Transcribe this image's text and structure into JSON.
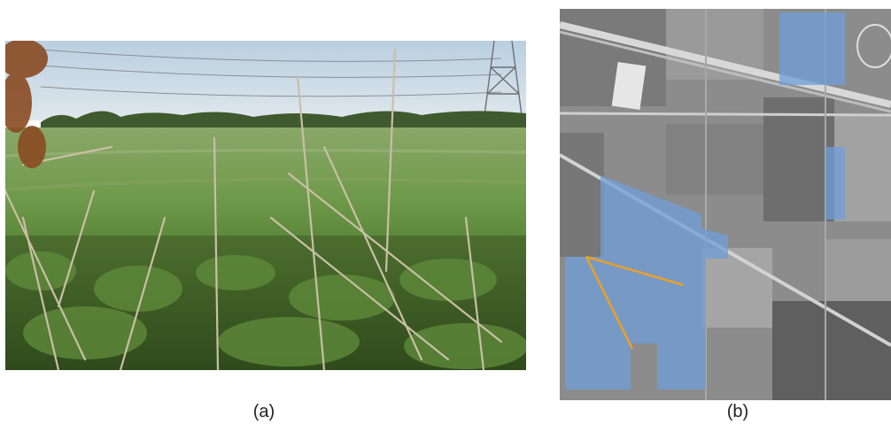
{
  "figure": {
    "panel_a": {
      "caption": "(a)",
      "description_icon": "photo-field-with-weeds"
    },
    "panel_b": {
      "caption": "(b)",
      "description_icon": "aerial-map-with-highlighted-fields"
    }
  },
  "colors": {
    "sky": "#c9d9e6",
    "field": "#6f9a4a",
    "highlight": "#6f9fd8",
    "path": "#f0a020",
    "aerial_base": "#8c8c8c"
  }
}
